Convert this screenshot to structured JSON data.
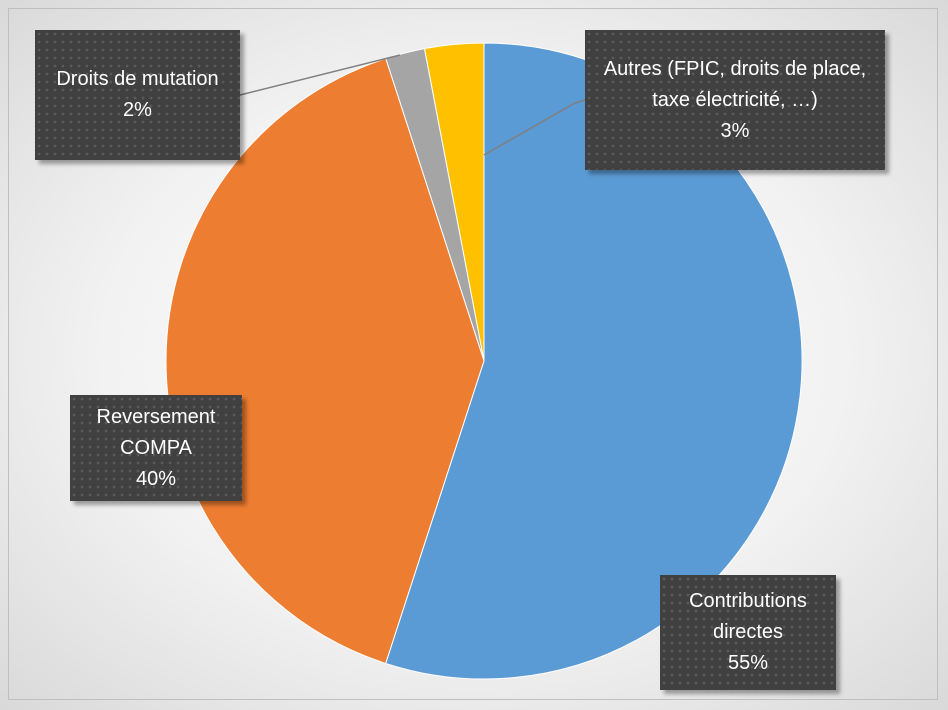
{
  "chart_data": {
    "type": "pie",
    "categories": [
      "Contributions directes",
      "Reversement COMPA",
      "Droits de mutation",
      "Autres (FPIC, droits de place, taxe électricité, …)"
    ],
    "values": [
      55,
      40,
      2,
      3
    ],
    "value_labels": [
      "55%",
      "40%",
      "2%",
      "3%"
    ],
    "colors": [
      "#5b9bd5",
      "#ed7d31",
      "#a5a5a5",
      "#ffc000"
    ]
  }
}
